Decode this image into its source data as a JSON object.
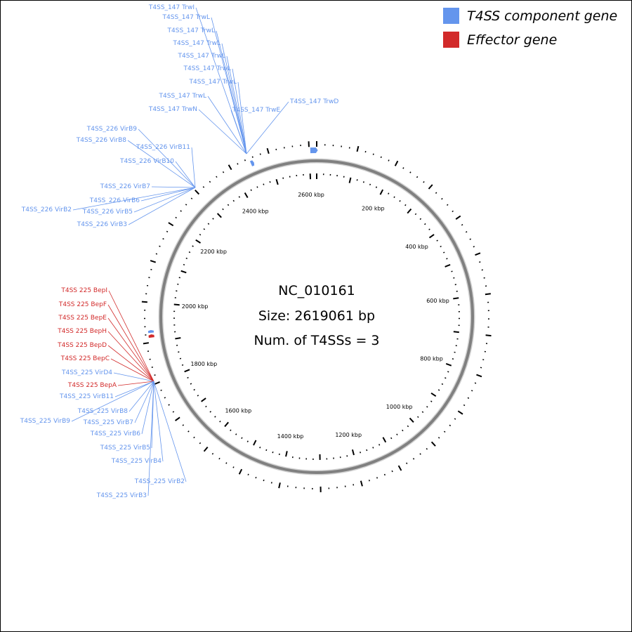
{
  "genome": {
    "accession": "NC_010161",
    "size_text": "Size: 2619061 bp",
    "t4ss_text": "Num. of T4SSs = 3",
    "size_bp": 2619061
  },
  "legend": [
    {
      "label": "T4SS component gene",
      "color": "#6495ED"
    },
    {
      "label": "Effector gene",
      "color": "#D22A2A"
    }
  ],
  "kbp_labels": [
    "200 kbp",
    "400 kbp",
    "600 kbp",
    "800 kbp",
    "1000 kbp",
    "1200 kbp",
    "1400 kbp",
    "1600 kbp",
    "1800 kbp",
    "2000 kbp",
    "2200 kbp",
    "2400 kbp",
    "2600 kbp"
  ],
  "colors": {
    "component": "#6495ED",
    "effector": "#D22A2A",
    "ring": "#808080"
  },
  "gene_labels": [
    {
      "text": "T4SS_147 TrwI",
      "type": "component",
      "group": "T4SS_147"
    },
    {
      "text": "T4SS_147 TrwL",
      "type": "component",
      "group": "T4SS_147"
    },
    {
      "text": "T4SS_147 TrwL",
      "type": "component",
      "group": "T4SS_147"
    },
    {
      "text": "T4SS_147 TrwL",
      "type": "component",
      "group": "T4SS_147"
    },
    {
      "text": "T4SS_147 TrwL",
      "type": "component",
      "group": "T4SS_147"
    },
    {
      "text": "T4SS_147 TrwL",
      "type": "component",
      "group": "T4SS_147"
    },
    {
      "text": "T4SS_147 TrwL",
      "type": "component",
      "group": "T4SS_147"
    },
    {
      "text": "T4SS_147 TrwL",
      "type": "component",
      "group": "T4SS_147"
    },
    {
      "text": "T4SS_147 TrwN",
      "type": "component",
      "group": "T4SS_147"
    },
    {
      "text": "T4SS_147 TrwE",
      "type": "component",
      "group": "T4SS_147"
    },
    {
      "text": "T4SS_147 TrwD",
      "type": "component",
      "group": "T4SS_147"
    },
    {
      "text": "T4SS_226 VirB9",
      "type": "component",
      "group": "T4SS_226"
    },
    {
      "text": "T4SS_226 VirB8",
      "type": "component",
      "group": "T4SS_226"
    },
    {
      "text": "T4SS_226 VirB11",
      "type": "component",
      "group": "T4SS_226"
    },
    {
      "text": "T4SS_226 VirB10",
      "type": "component",
      "group": "T4SS_226"
    },
    {
      "text": "T4SS_226 VirB7",
      "type": "component",
      "group": "T4SS_226"
    },
    {
      "text": "T4SS_226 VirB6",
      "type": "component",
      "group": "T4SS_226"
    },
    {
      "text": "T4SS_226 VirB2",
      "type": "component",
      "group": "T4SS_226"
    },
    {
      "text": "T4SS_226 VirB5",
      "type": "component",
      "group": "T4SS_226"
    },
    {
      "text": "T4SS_226 VirB3",
      "type": "component",
      "group": "T4SS_226"
    },
    {
      "text": "T4SS 225 BepI",
      "type": "effector",
      "group": "T4SS_225"
    },
    {
      "text": "T4SS 225 BepF",
      "type": "effector",
      "group": "T4SS_225"
    },
    {
      "text": "T4SS 225 BepE",
      "type": "effector",
      "group": "T4SS_225"
    },
    {
      "text": "T4SS 225 BepH",
      "type": "effector",
      "group": "T4SS_225"
    },
    {
      "text": "T4SS 225 BepD",
      "type": "effector",
      "group": "T4SS_225"
    },
    {
      "text": "T4SS 225 BepC",
      "type": "effector",
      "group": "T4SS_225"
    },
    {
      "text": "T4SS_225 VirD4",
      "type": "component",
      "group": "T4SS_225"
    },
    {
      "text": "T4SS 225 BepA",
      "type": "effector",
      "group": "T4SS_225"
    },
    {
      "text": "T4SS_225 VirB11",
      "type": "component",
      "group": "T4SS_225"
    },
    {
      "text": "T4SS_225 VirB8",
      "type": "component",
      "group": "T4SS_225"
    },
    {
      "text": "T4SS_225 VirB9",
      "type": "component",
      "group": "T4SS_225"
    },
    {
      "text": "T4SS_225 VirB7",
      "type": "component",
      "group": "T4SS_225"
    },
    {
      "text": "T4SS_225 VirB6",
      "type": "component",
      "group": "T4SS_225"
    },
    {
      "text": "T4SS_225 VirB5",
      "type": "component",
      "group": "T4SS_225"
    },
    {
      "text": "T4SS_225 VirB4",
      "type": "component",
      "group": "T4SS_225"
    },
    {
      "text": "T4SS_225 VirB2",
      "type": "component",
      "group": "T4SS_225"
    },
    {
      "text": "T4SS_225 VirB3",
      "type": "component",
      "group": "T4SS_225"
    }
  ]
}
